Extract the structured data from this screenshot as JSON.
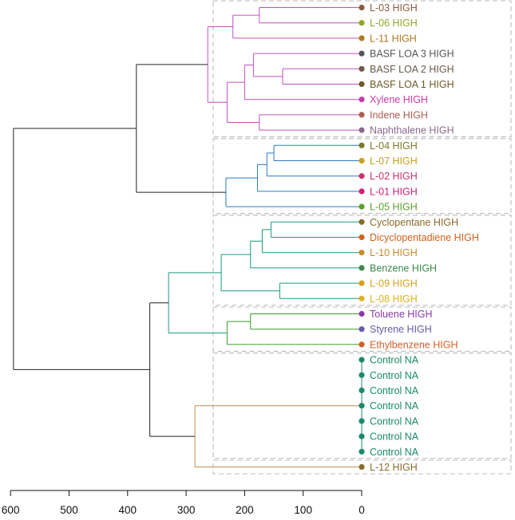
{
  "chart_data": {
    "type": "dendrogram",
    "orientation": "horizontal",
    "x_axis": {
      "ticks": [
        600,
        500,
        400,
        300,
        200,
        100,
        0
      ],
      "tick_labels": [
        "600",
        "500",
        "400",
        "300",
        "200",
        "100",
        "0"
      ],
      "range": [
        625,
        0
      ]
    },
    "leaves": [
      {
        "label": "L-03 HIGH",
        "color": "#8b5a3c"
      },
      {
        "label": "L-06 HIGH",
        "color": "#8ea82a"
      },
      {
        "label": "L-11 HIGH",
        "color": "#b07a1e"
      },
      {
        "label": "BASF LOA 3 HIGH",
        "color": "#555555"
      },
      {
        "label": "BASF LOA 2 HIGH",
        "color": "#6b5a48"
      },
      {
        "label": "BASF LOA 1 HIGH",
        "color": "#6e5a2a"
      },
      {
        "label": "Xylene HIGH",
        "color": "#c83caa"
      },
      {
        "label": "Indene HIGH",
        "color": "#b05a50"
      },
      {
        "label": "Naphthalene HIGH",
        "color": "#8a6a8a"
      },
      {
        "label": "L-04 HIGH",
        "color": "#7a7a2a"
      },
      {
        "label": "L-07 HIGH",
        "color": "#c8a020"
      },
      {
        "label": "L-02 HIGH",
        "color": "#d0306a"
      },
      {
        "label": "L-01 HIGH",
        "color": "#d0207a"
      },
      {
        "label": "L-05 HIGH",
        "color": "#5aa02a"
      },
      {
        "label": "Cyclopentane HIGH",
        "color": "#8a6a2a"
      },
      {
        "label": "Dicyclopentadiene HIGH",
        "color": "#d0601a"
      },
      {
        "label": "L-10 HIGH",
        "color": "#c88a2a"
      },
      {
        "label": "Benzene HIGH",
        "color": "#3a8a4a"
      },
      {
        "label": "L-09 HIGH",
        "color": "#d8a020"
      },
      {
        "label": "L-08 HIGH",
        "color": "#e0b020"
      },
      {
        "label": "Toluene HIGH",
        "color": "#8a3aaa"
      },
      {
        "label": "Styrene HIGH",
        "color": "#6a5aaa"
      },
      {
        "label": "Ethylbenzene HIGH",
        "color": "#d0602a"
      },
      {
        "label": "Control NA",
        "color": "#1a8a6a"
      },
      {
        "label": "Control NA",
        "color": "#1a8a6a"
      },
      {
        "label": "Control NA",
        "color": "#1a8a6a"
      },
      {
        "label": "Control NA",
        "color": "#1a8a6a"
      },
      {
        "label": "Control NA",
        "color": "#1a8a6a"
      },
      {
        "label": "Control NA",
        "color": "#1a8a6a"
      },
      {
        "label": "Control NA",
        "color": "#1a8a6a"
      },
      {
        "label": "L-12 HIGH",
        "color": "#8a6a2a"
      }
    ],
    "merges": [
      {
        "height": 175,
        "children": [
          "L0",
          "L1"
        ],
        "color": "#c050c0"
      },
      {
        "height": 220,
        "children": [
          "M0",
          "L2"
        ],
        "color": "#c050c0"
      },
      {
        "height": 135,
        "children": [
          "L4",
          "L5"
        ],
        "color": "#c050c0"
      },
      {
        "height": 185,
        "children": [
          "L3",
          "M2"
        ],
        "color": "#c050c0"
      },
      {
        "height": 200,
        "children": [
          "M3",
          "L6"
        ],
        "color": "#c050c0"
      },
      {
        "height": 175,
        "children": [
          "L7",
          "L8"
        ],
        "color": "#c050c0"
      },
      {
        "height": 230,
        "children": [
          "M4",
          "M5"
        ],
        "color": "#c050c0"
      },
      {
        "height": 263,
        "children": [
          "M1",
          "M6"
        ],
        "color": "#c050c0"
      },
      {
        "height": 150,
        "children": [
          "L9",
          "L10"
        ],
        "color": "#2a7ac8"
      },
      {
        "height": 162,
        "children": [
          "M8",
          "L11"
        ],
        "color": "#2a7ac8"
      },
      {
        "height": 178,
        "children": [
          "M9",
          "L12"
        ],
        "color": "#2a7ac8"
      },
      {
        "height": 232,
        "children": [
          "M10",
          "L13"
        ],
        "color": "#2a7ac8"
      },
      {
        "height": 155,
        "children": [
          "L14",
          "L15"
        ],
        "color": "#1a9a80"
      },
      {
        "height": 170,
        "children": [
          "M12",
          "L16"
        ],
        "color": "#1a9a80"
      },
      {
        "height": 190,
        "children": [
          "M13",
          "L17"
        ],
        "color": "#1a9a80"
      },
      {
        "height": 140,
        "children": [
          "L18",
          "L19"
        ],
        "color": "#1a9a80"
      },
      {
        "height": 240,
        "children": [
          "M14",
          "M15"
        ],
        "color": "#1a9a80"
      },
      {
        "height": 190,
        "children": [
          "L20",
          "L21"
        ],
        "color": "#3a9a2a"
      },
      {
        "height": 230,
        "children": [
          "M17",
          "L22"
        ],
        "color": "#3a9a2a"
      },
      {
        "height": 330,
        "children": [
          "M16",
          "M18"
        ],
        "color": "#1a9a80"
      },
      {
        "height": 0,
        "children": [
          "L23",
          "L24",
          "L25",
          "L26",
          "L27",
          "L28",
          "L29"
        ],
        "color": "#1a8a6a"
      },
      {
        "height": 285,
        "children": [
          "M20",
          "L30"
        ],
        "color": "#c09050"
      },
      {
        "height": 362,
        "children": [
          "M19",
          "M21"
        ],
        "color": "#222222"
      },
      {
        "height": 385,
        "children": [
          "M7",
          "M11"
        ],
        "color": "#222222"
      },
      {
        "height": 595,
        "children": [
          "M23",
          "M22"
        ],
        "color": "#222222"
      }
    ],
    "clusters": [
      {
        "leaf_range": [
          0,
          8
        ]
      },
      {
        "leaf_range": [
          9,
          13
        ]
      },
      {
        "leaf_range": [
          14,
          19
        ]
      },
      {
        "leaf_range": [
          20,
          22
        ]
      },
      {
        "leaf_range": [
          23,
          29
        ]
      },
      {
        "leaf_range": [
          30,
          30
        ]
      }
    ]
  }
}
